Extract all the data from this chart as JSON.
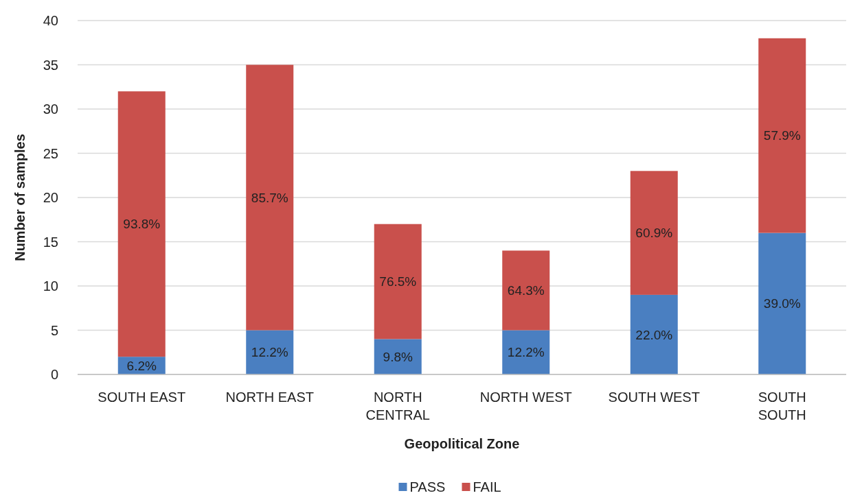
{
  "chart_data": {
    "type": "bar",
    "stacked": true,
    "xlabel": "Geopolitical Zone",
    "ylabel": "Number of samples",
    "categories": [
      "SOUTH EAST",
      "NORTH EAST",
      "NORTH CENTRAL",
      "NORTH WEST",
      "SOUTH WEST",
      "SOUTH SOUTH"
    ],
    "series": [
      {
        "name": "PASS",
        "color": "#4a7fc1",
        "values": [
          2,
          5,
          4,
          5,
          9,
          16
        ]
      },
      {
        "name": "FAIL",
        "color": "#c9504c",
        "values": [
          30,
          30,
          13,
          9,
          14,
          22
        ]
      }
    ],
    "annotations": [
      "6.2%",
      "12.2%",
      "9.8%",
      "12.2%",
      "22.0%",
      "39.0%",
      "93.8%",
      "85.7%",
      "76.5%",
      "64.3%",
      "60.9%",
      "57.9%"
    ],
    "ylim": [
      0,
      40
    ],
    "yticks": [
      0,
      5,
      10,
      15,
      20,
      25,
      30,
      35,
      40
    ],
    "grid": "y",
    "legend": "bottom"
  }
}
